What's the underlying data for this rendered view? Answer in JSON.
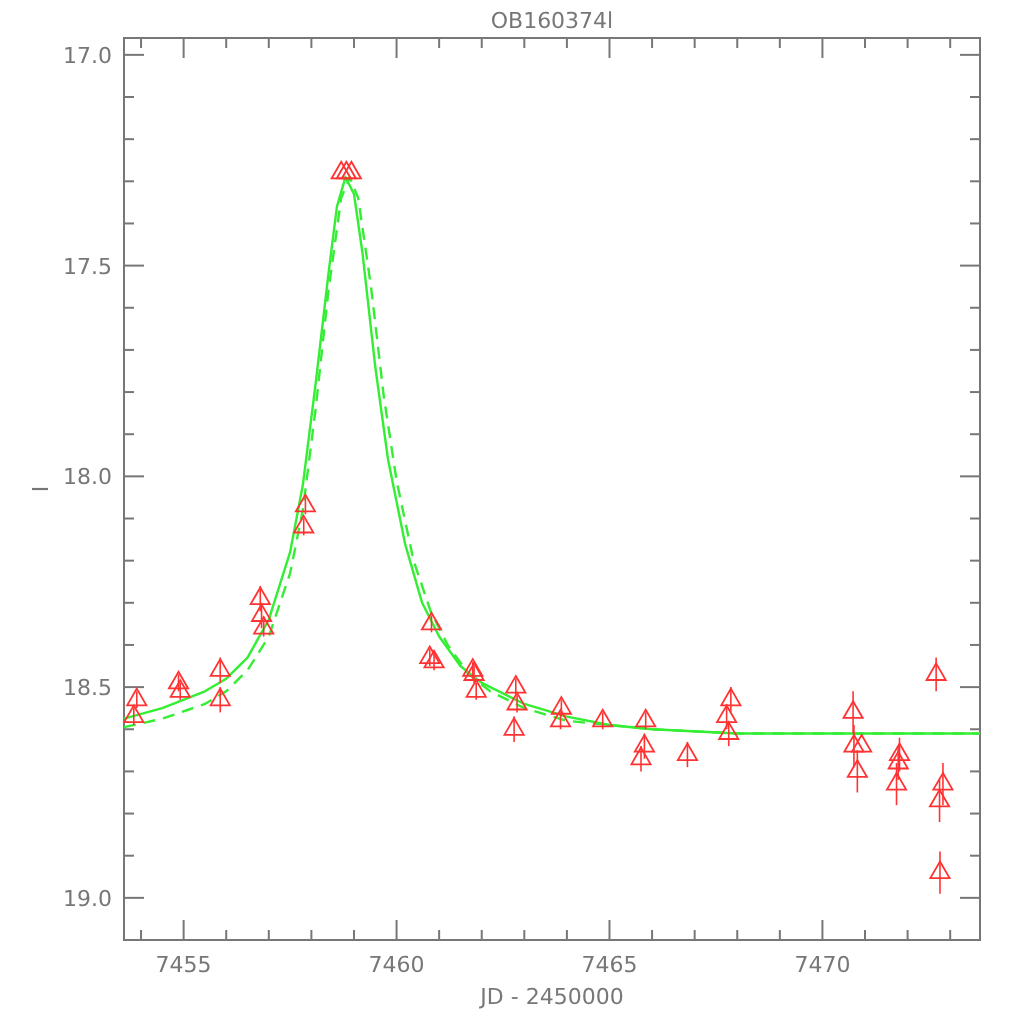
{
  "chart_data": {
    "type": "scatter",
    "title": "OB160374l",
    "xlabel": "JD - 2450000",
    "ylabel": "I",
    "xlim": [
      7453.6,
      7473.7
    ],
    "ylim": [
      19.1,
      16.96
    ],
    "xticks": [
      {
        "value": 7454,
        "label": null
      },
      7455,
      {
        "value": 7456,
        "label": null
      },
      {
        "value": 7457,
        "label": null
      },
      {
        "value": 7458,
        "label": null
      },
      {
        "value": 7459,
        "label": null
      },
      7460,
      {
        "value": 7461,
        "label": null
      },
      {
        "value": 7462,
        "label": null
      },
      {
        "value": 7463,
        "label": null
      },
      {
        "value": 7464,
        "label": null
      },
      7465,
      {
        "value": 7466,
        "label": null
      },
      {
        "value": 7467,
        "label": null
      },
      {
        "value": 7468,
        "label": null
      },
      {
        "value": 7469,
        "label": null
      },
      7470,
      {
        "value": 7471,
        "label": null
      },
      {
        "value": 7472,
        "label": null
      },
      {
        "value": 7473,
        "label": null
      }
    ],
    "yticks": [
      {
        "value": 17,
        "label": "17.0"
      },
      {
        "value": 17.1,
        "label": null
      },
      {
        "value": 17.2,
        "label": null
      },
      {
        "value": 17.3,
        "label": null
      },
      {
        "value": 17.4,
        "label": null
      },
      17.5,
      {
        "value": 17.6,
        "label": null
      },
      {
        "value": 17.7,
        "label": null
      },
      {
        "value": 17.8,
        "label": null
      },
      {
        "value": 17.9,
        "label": null
      },
      {
        "value": 18,
        "label": "18.0"
      },
      {
        "value": 18.1,
        "label": null
      },
      {
        "value": 18.2,
        "label": null
      },
      {
        "value": 18.3,
        "label": null
      },
      {
        "value": 18.4,
        "label": null
      },
      18.5,
      {
        "value": 18.6,
        "label": null
      },
      {
        "value": 18.7,
        "label": null
      },
      {
        "value": 18.8,
        "label": null
      },
      {
        "value": 18.9,
        "label": null
      },
      {
        "value": 19,
        "label": "19.0"
      }
    ],
    "grid": false,
    "series": [
      {
        "type": "line",
        "color": "#33ee33",
        "line_style": "solid",
        "x": [
          7453.6,
          7454.5,
          7455.5,
          7456.0,
          7456.5,
          7457.0,
          7457.5,
          7457.8,
          7458.1,
          7458.4,
          7458.6,
          7458.8,
          7459.0,
          7459.2,
          7459.5,
          7459.8,
          7460.2,
          7460.6,
          7461.0,
          7461.5,
          7462,
          7463,
          7464,
          7465,
          7466,
          7468,
          7473.7
        ],
        "values": [
          18.575,
          18.55,
          18.51,
          18.48,
          18.43,
          18.34,
          18.18,
          18.02,
          17.78,
          17.52,
          17.36,
          17.29,
          17.33,
          17.47,
          17.74,
          17.96,
          18.16,
          18.3,
          18.38,
          18.45,
          18.49,
          18.54,
          18.57,
          18.59,
          18.6,
          18.61,
          18.61
        ]
      },
      {
        "type": "line",
        "color": "#33ee33",
        "line_style": "dashed",
        "x": [
          7453.6,
          7454.5,
          7455.5,
          7456.0,
          7456.5,
          7457.0,
          7457.5,
          7457.8,
          7458.1,
          7458.4,
          7458.7,
          7458.9,
          7459.1,
          7459.4,
          7459.7,
          7460.0,
          7460.4,
          7460.8,
          7461.2,
          7461.7,
          7462.2,
          7463,
          7464,
          7465,
          7466,
          7468,
          7473.7
        ],
        "values": [
          18.595,
          18.575,
          18.54,
          18.51,
          18.46,
          18.38,
          18.23,
          18.08,
          17.84,
          17.56,
          17.34,
          17.29,
          17.34,
          17.55,
          17.81,
          18.01,
          18.2,
          18.32,
          18.4,
          18.47,
          18.51,
          18.55,
          18.58,
          18.59,
          18.6,
          18.61,
          18.61
        ]
      },
      {
        "color": "#ff3333",
        "marker": "triangle",
        "x": [
          7453.9,
          7453.83,
          7454.88,
          7454.92,
          7455.86,
          7455.86,
          7456.8,
          7456.83,
          7456.88,
          7457.86,
          7457.82,
          7458.7,
          7458.82,
          7458.94,
          7460.82,
          7460.78,
          7460.88,
          7461.79,
          7461.82,
          7461.87,
          7462.8,
          7462.83,
          7462.76,
          7463.87,
          7463.85,
          7464.84,
          7465.85,
          7465.82,
          7465.74,
          7466.83,
          7467.85,
          7467.75,
          7467.8,
          7470.72,
          7470.74,
          7470.92,
          7470.82,
          7471.81,
          7471.78,
          7471.74,
          7472.67,
          7472.83,
          7472.75,
          7472.76
        ],
        "values": [
          18.53,
          18.57,
          18.49,
          18.51,
          18.46,
          18.53,
          18.29,
          18.33,
          18.36,
          18.07,
          18.12,
          17.28,
          17.28,
          17.28,
          18.35,
          18.43,
          18.44,
          18.46,
          18.47,
          18.51,
          18.5,
          18.54,
          18.6,
          18.55,
          18.58,
          18.58,
          18.58,
          18.64,
          18.67,
          18.66,
          18.53,
          18.57,
          18.61,
          18.56,
          18.64,
          18.64,
          18.7,
          18.66,
          18.68,
          18.73,
          18.47,
          18.73,
          18.77,
          18.94
        ],
        "errors": [
          0.02,
          0.02,
          0.02,
          0.02,
          0.03,
          0.03,
          0.03,
          0.03,
          0.02,
          0.02,
          0.02,
          null,
          null,
          null,
          0.02,
          0.02,
          0.02,
          0.02,
          0.02,
          0.02,
          0.02,
          0.02,
          0.03,
          0.02,
          0.02,
          0.02,
          0.02,
          0.03,
          0.03,
          0.03,
          0.03,
          0.03,
          0.03,
          0.05,
          0.05,
          null,
          0.05,
          0.04,
          0.04,
          0.05,
          0.04,
          0.05,
          0.05,
          0.05
        ]
      }
    ]
  }
}
